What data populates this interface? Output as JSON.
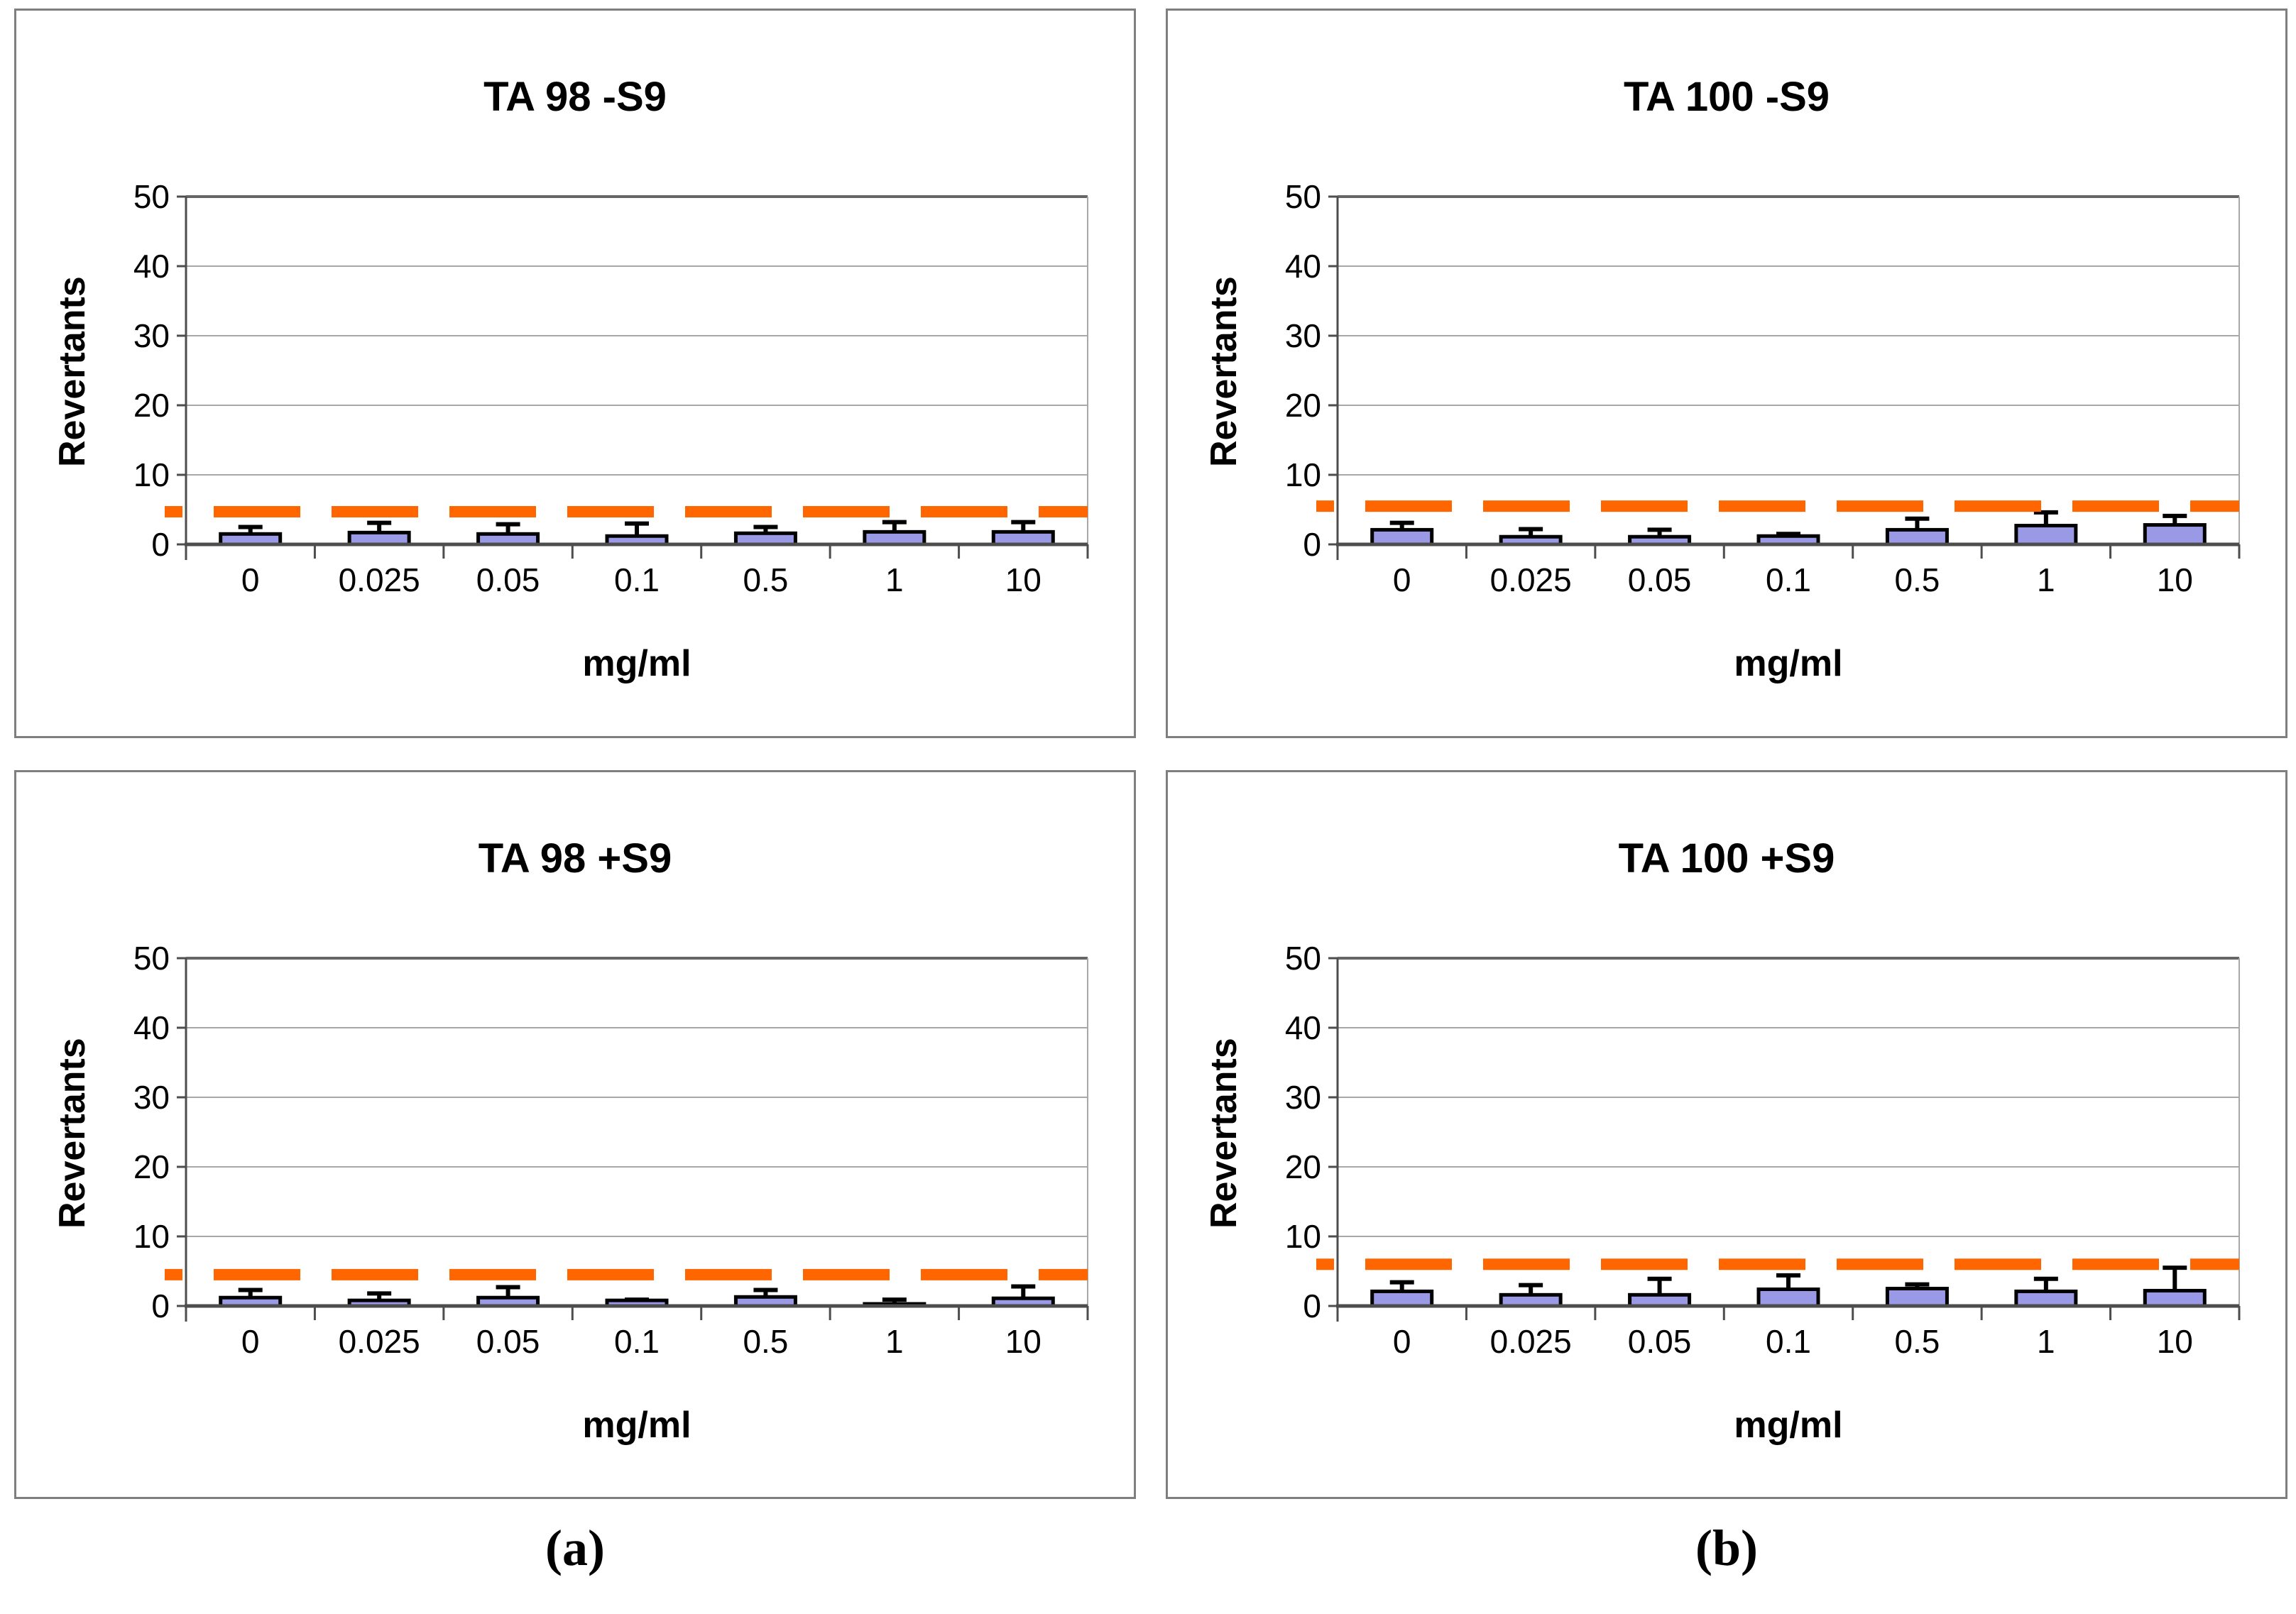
{
  "captions": {
    "a": "(a)",
    "b": "(b)"
  },
  "colors": {
    "bar_fill": "#9999E6",
    "bar_stroke": "#000000",
    "error_bar": "#000000",
    "threshold_line": "#FF6600",
    "gridline": "#A8A8A8",
    "top_gridline": "#666666",
    "axis": "#4D4D4D",
    "panel_border": "#7F7F7F"
  },
  "chart_data": [
    {
      "type": "bar",
      "title": "TA 98 -S9",
      "xlabel": "mg/ml",
      "ylabel": "Revertants",
      "categories": [
        "0",
        "0.025",
        "0.05",
        "0.1",
        "0.5",
        "1",
        "10"
      ],
      "values": [
        1.5,
        1.7,
        1.5,
        1.2,
        1.6,
        1.8,
        1.8
      ],
      "error_top": [
        2.5,
        3.1,
        2.9,
        3.0,
        2.5,
        3.2,
        3.2
      ],
      "threshold": 4.7,
      "ylim": [
        0,
        50
      ],
      "y_ticks": [
        0,
        10,
        20,
        30,
        40,
        50
      ],
      "grid": true,
      "legend": false
    },
    {
      "type": "bar",
      "title": "TA 100 -S9",
      "xlabel": "mg/ml",
      "ylabel": "Revertants",
      "categories": [
        "0",
        "0.025",
        "0.05",
        "0.1",
        "0.5",
        "1",
        "10"
      ],
      "values": [
        2.1,
        1.1,
        1.1,
        1.2,
        2.1,
        2.7,
        2.8
      ],
      "error_top": [
        3.1,
        2.2,
        2.1,
        1.5,
        3.7,
        4.6,
        4.1
      ],
      "threshold": 5.5,
      "ylim": [
        0,
        50
      ],
      "y_ticks": [
        0,
        10,
        20,
        30,
        40,
        50
      ],
      "grid": true,
      "legend": false
    },
    {
      "type": "bar",
      "title": "TA 98 +S9",
      "xlabel": "mg/ml",
      "ylabel": "Revertants",
      "categories": [
        "0",
        "0.025",
        "0.05",
        "0.1",
        "0.5",
        "1",
        "10"
      ],
      "values": [
        1.2,
        0.8,
        1.2,
        0.8,
        1.3,
        0.3,
        1.1
      ],
      "error_top": [
        2.3,
        1.8,
        2.7,
        0.9,
        2.3,
        0.9,
        2.8
      ],
      "threshold": 4.5,
      "ylim": [
        0,
        50
      ],
      "y_ticks": [
        0,
        10,
        20,
        30,
        40,
        50
      ],
      "grid": true,
      "legend": false
    },
    {
      "type": "bar",
      "title": "TA 100 +S9",
      "xlabel": "mg/ml",
      "ylabel": "Revertants",
      "categories": [
        "0",
        "0.025",
        "0.05",
        "0.1",
        "0.5",
        "1",
        "10"
      ],
      "values": [
        2.1,
        1.6,
        1.6,
        2.4,
        2.5,
        2.1,
        2.2
      ],
      "error_top": [
        3.4,
        3.0,
        3.9,
        4.4,
        3.1,
        3.9,
        5.5
      ],
      "threshold": 6.0,
      "ylim": [
        0,
        50
      ],
      "y_ticks": [
        0,
        10,
        20,
        30,
        40,
        50
      ],
      "grid": true,
      "legend": false
    }
  ]
}
